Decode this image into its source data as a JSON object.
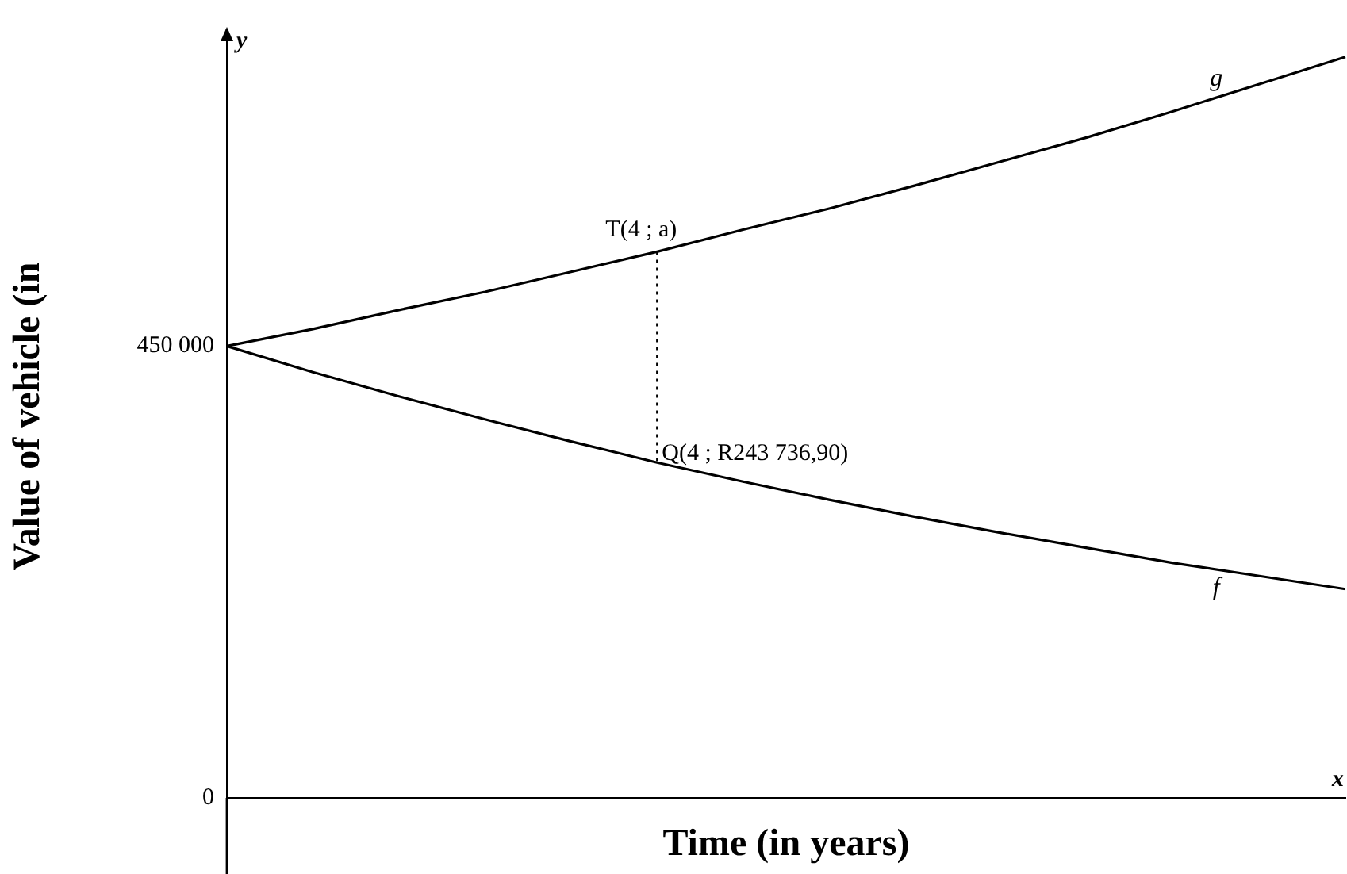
{
  "chart_data": {
    "type": "line",
    "xlabel": "Time (in years)",
    "ylabel": "Value of vehicle (in",
    "categories": [
      null,
      null,
      null,
      null,
      null,
      null,
      null,
      null,
      null,
      null,
      null,
      null,
      null,
      null
    ],
    "ylim": [
      0,
      760000
    ],
    "yticks": [
      0,
      {
        "value": 450000,
        "label": "450 000"
      }
    ],
    "tick_labels": "y",
    "grid": false,
    "legend": false,
    "marker": "none",
    "series": [
      {
        "name": "g",
        "color": "#000000",
        "values": [
          450000,
          467000,
          486000,
          504000,
          524000,
          544000,
          566000,
          587000,
          610000,
          634000,
          658000,
          684000,
          711000,
          738000
        ]
      },
      {
        "name": "f",
        "color": "#000000",
        "values": [
          450000,
          424000,
          400000,
          377000,
          355000,
          334000,
          315000,
          297000,
          280000,
          264000,
          249000,
          234000,
          221000,
          208000
        ]
      }
    ],
    "annotations": [
      "T(4 ; a)",
      "Q(4 ; R243 736,90)",
      "y",
      "x"
    ]
  }
}
